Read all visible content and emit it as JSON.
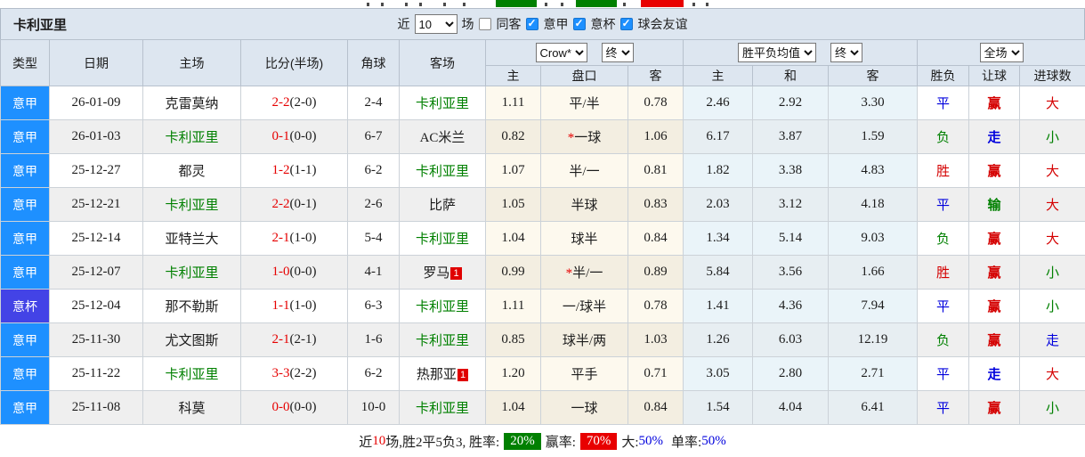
{
  "colors": {
    "serie_a_badge": "#1E90FF",
    "cup_badge": "#4343E6",
    "team_green": "#008000",
    "score_red": "#E60000",
    "result_red": "#D40000",
    "result_blue": "#0000DD",
    "result_green": "#008000",
    "win_rate_badge": "#008000",
    "handicap_rate_badge": "#E80000",
    "bottom_bar": "#47A7DA",
    "header_bg": "#DDE6F0"
  },
  "title_bar": {
    "team": "卡利亚里",
    "near_label": "近",
    "near_value": "10",
    "games_label": "场",
    "same_opponent": {
      "label": "同客",
      "checked": false
    },
    "filters": [
      {
        "label": "意甲",
        "checked": true
      },
      {
        "label": "意杯",
        "checked": true
      },
      {
        "label": "球会友谊",
        "checked": true
      }
    ]
  },
  "table": {
    "static_columns": [
      "类型",
      "日期",
      "主场",
      "比分(半场)",
      "角球",
      "客场"
    ],
    "odds_group": {
      "bookmaker": "Crow*",
      "stage": "终",
      "sub": [
        "主",
        "盘口",
        "客"
      ]
    },
    "avg_group": {
      "metric": "胜平负均值",
      "stage": "终",
      "sub": [
        "主",
        "和",
        "客"
      ]
    },
    "result_group": {
      "scope": "全场",
      "sub": [
        "胜负",
        "让球",
        "进球数"
      ]
    },
    "rows": [
      {
        "league": "意甲",
        "league_type": "serie_a",
        "date": "26-01-09",
        "home": "克雷莫纳",
        "home_green": false,
        "home_badge": "",
        "score_full": "2-2",
        "score_half": "(2-0)",
        "corner": "2-4",
        "away": "卡利亚里",
        "away_green": true,
        "away_badge": "",
        "odds_home": "1.11",
        "line_star": "",
        "line": "平/半",
        "odds_away": "0.78",
        "avg_home": "2.46",
        "avg_draw": "2.92",
        "avg_away": "3.30",
        "wdl": "平",
        "wdl_c": "blue",
        "handicap": "赢",
        "handicap_c": "red",
        "goal": "大",
        "goal_c": "red"
      },
      {
        "league": "意甲",
        "league_type": "serie_a",
        "date": "26-01-03",
        "home": "卡利亚里",
        "home_green": true,
        "home_badge": "",
        "score_full": "0-1",
        "score_half": "(0-0)",
        "corner": "6-7",
        "away": "AC米兰",
        "away_green": false,
        "away_badge": "",
        "odds_home": "0.82",
        "line_star": "*",
        "line": "一球",
        "odds_away": "1.06",
        "avg_home": "6.17",
        "avg_draw": "3.87",
        "avg_away": "1.59",
        "wdl": "负",
        "wdl_c": "green",
        "handicap": "走",
        "handicap_c": "blue",
        "goal": "小",
        "goal_c": "green"
      },
      {
        "league": "意甲",
        "league_type": "serie_a",
        "date": "25-12-27",
        "home": "都灵",
        "home_green": false,
        "home_badge": "",
        "score_full": "1-2",
        "score_half": "(1-1)",
        "corner": "6-2",
        "away": "卡利亚里",
        "away_green": true,
        "away_badge": "",
        "odds_home": "1.07",
        "line_star": "",
        "line": "半/一",
        "odds_away": "0.81",
        "avg_home": "1.82",
        "avg_draw": "3.38",
        "avg_away": "4.83",
        "wdl": "胜",
        "wdl_c": "red",
        "handicap": "赢",
        "handicap_c": "red",
        "goal": "大",
        "goal_c": "red"
      },
      {
        "league": "意甲",
        "league_type": "serie_a",
        "date": "25-12-21",
        "home": "卡利亚里",
        "home_green": true,
        "home_badge": "",
        "score_full": "2-2",
        "score_half": "(0-1)",
        "corner": "2-6",
        "away": "比萨",
        "away_green": false,
        "away_badge": "",
        "odds_home": "1.05",
        "line_star": "",
        "line": "半球",
        "odds_away": "0.83",
        "avg_home": "2.03",
        "avg_draw": "3.12",
        "avg_away": "4.18",
        "wdl": "平",
        "wdl_c": "blue",
        "handicap": "输",
        "handicap_c": "green",
        "goal": "大",
        "goal_c": "red"
      },
      {
        "league": "意甲",
        "league_type": "serie_a",
        "date": "25-12-14",
        "home": "亚特兰大",
        "home_green": false,
        "home_badge": "",
        "score_full": "2-1",
        "score_half": "(1-0)",
        "corner": "5-4",
        "away": "卡利亚里",
        "away_green": true,
        "away_badge": "",
        "odds_home": "1.04",
        "line_star": "",
        "line": "球半",
        "odds_away": "0.84",
        "avg_home": "1.34",
        "avg_draw": "5.14",
        "avg_away": "9.03",
        "wdl": "负",
        "wdl_c": "green",
        "handicap": "赢",
        "handicap_c": "red",
        "goal": "大",
        "goal_c": "red"
      },
      {
        "league": "意甲",
        "league_type": "serie_a",
        "date": "25-12-07",
        "home": "卡利亚里",
        "home_green": true,
        "home_badge": "",
        "score_full": "1-0",
        "score_half": "(0-0)",
        "corner": "4-1",
        "away": "罗马",
        "away_green": false,
        "away_badge": "1",
        "odds_home": "0.99",
        "line_star": "*",
        "line": "半/一",
        "odds_away": "0.89",
        "avg_home": "5.84",
        "avg_draw": "3.56",
        "avg_away": "1.66",
        "wdl": "胜",
        "wdl_c": "red",
        "handicap": "赢",
        "handicap_c": "red",
        "goal": "小",
        "goal_c": "green"
      },
      {
        "league": "意杯",
        "league_type": "cup",
        "date": "25-12-04",
        "home": "那不勒斯",
        "home_green": false,
        "home_badge": "",
        "score_full": "1-1",
        "score_half": "(1-0)",
        "corner": "6-3",
        "away": "卡利亚里",
        "away_green": true,
        "away_badge": "",
        "odds_home": "1.11",
        "line_star": "",
        "line": "一/球半",
        "odds_away": "0.78",
        "avg_home": "1.41",
        "avg_draw": "4.36",
        "avg_away": "7.94",
        "wdl": "平",
        "wdl_c": "blue",
        "handicap": "赢",
        "handicap_c": "red",
        "goal": "小",
        "goal_c": "green"
      },
      {
        "league": "意甲",
        "league_type": "serie_a",
        "date": "25-11-30",
        "home": "尤文图斯",
        "home_green": false,
        "home_badge": "",
        "score_full": "2-1",
        "score_half": "(2-1)",
        "corner": "1-6",
        "away": "卡利亚里",
        "away_green": true,
        "away_badge": "",
        "odds_home": "0.85",
        "line_star": "",
        "line": "球半/两",
        "odds_away": "1.03",
        "avg_home": "1.26",
        "avg_draw": "6.03",
        "avg_away": "12.19",
        "wdl": "负",
        "wdl_c": "green",
        "handicap": "赢",
        "handicap_c": "red",
        "goal": "走",
        "goal_c": "blue"
      },
      {
        "league": "意甲",
        "league_type": "serie_a",
        "date": "25-11-22",
        "home": "卡利亚里",
        "home_green": true,
        "home_badge": "",
        "score_full": "3-3",
        "score_half": "(2-2)",
        "corner": "6-2",
        "away": "热那亚",
        "away_green": false,
        "away_badge": "1",
        "odds_home": "1.20",
        "line_star": "",
        "line": "平手",
        "odds_away": "0.71",
        "avg_home": "3.05",
        "avg_draw": "2.80",
        "avg_away": "2.71",
        "wdl": "平",
        "wdl_c": "blue",
        "handicap": "走",
        "handicap_c": "blue",
        "goal": "大",
        "goal_c": "red"
      },
      {
        "league": "意甲",
        "league_type": "serie_a",
        "date": "25-11-08",
        "home": "科莫",
        "home_green": false,
        "home_badge": "",
        "score_full": "0-0",
        "score_half": "(0-0)",
        "corner": "10-0",
        "away": "卡利亚里",
        "away_green": true,
        "away_badge": "",
        "odds_home": "1.04",
        "line_star": "",
        "line": "一球",
        "odds_away": "0.84",
        "avg_home": "1.54",
        "avg_draw": "4.04",
        "avg_away": "6.41",
        "wdl": "平",
        "wdl_c": "blue",
        "handicap": "赢",
        "handicap_c": "red",
        "goal": "小",
        "goal_c": "green"
      }
    ]
  },
  "footer": {
    "near_label": "近",
    "near_count": "10",
    "summary": "场,胜2平5负3, 胜率:",
    "win_rate": "20%",
    "handicap_label": "赢率:",
    "handicap_rate": "70%",
    "big_label": "大:",
    "big_value": "50%",
    "single_label": "单率:",
    "single_value": "50%"
  }
}
